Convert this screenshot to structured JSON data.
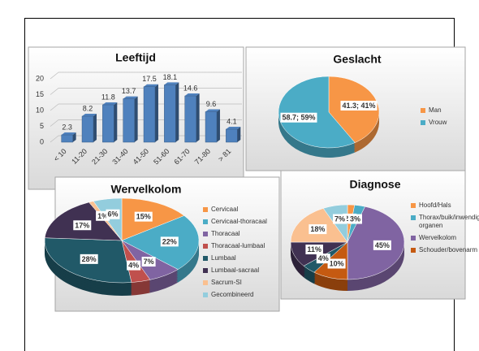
{
  "chart_data": [
    {
      "type": "bar",
      "title": "Leeftijd",
      "categories": [
        "< 10",
        "11-20",
        "21-30",
        "31-40",
        "41-50",
        "51-60",
        "61-70",
        "71-80",
        "> 81"
      ],
      "values": [
        2.3,
        8.2,
        11.8,
        13.7,
        17.5,
        18.1,
        14.6,
        9.6,
        4.1
      ],
      "color": "#4f81bd",
      "ylim": [
        0,
        20
      ],
      "yticks": [
        0,
        5,
        10,
        15,
        20
      ],
      "grid": true
    },
    {
      "type": "pie",
      "title": "Geslacht",
      "categories": [
        "Man",
        "Vrouw"
      ],
      "values": [
        41.3,
        58.7
      ],
      "value_labels": [
        "41.3; 41%",
        "58.7; 59%"
      ],
      "colors": [
        "#f79646",
        "#4bacc6"
      ],
      "legend": "right"
    },
    {
      "type": "pie",
      "title": "Wervelkolom",
      "categories": [
        "Cervicaal",
        "Cervicaal-thoracaal",
        "Thoracaal",
        "Thoracaal-lumbaal",
        "Lumbaal",
        "Lumbaal-sacraal",
        "Sacrum-SI",
        "Gecombineerd"
      ],
      "values": [
        15,
        22,
        7,
        4,
        28,
        17,
        1,
        6
      ],
      "value_labels": [
        "15%",
        "22%",
        "7%",
        "4%",
        "28%",
        "17%",
        "1%",
        "6%"
      ],
      "colors": [
        "#f79646",
        "#4bacc6",
        "#8064a2",
        "#c0504d",
        "#215968",
        "#403152",
        "#fac090",
        "#93cddd"
      ],
      "legend": "right"
    },
    {
      "type": "pie",
      "title": "Diagnose",
      "categories": [
        "Hoofd/Hals",
        "Thorax/buik/inwendige organen",
        "Wervelkolom",
        "Schouder/bovenarm",
        null,
        null,
        null,
        null
      ],
      "values": [
        2,
        3,
        45,
        10,
        4,
        11,
        18,
        7
      ],
      "value_labels": [
        "2%",
        "3%",
        "45%",
        "10%",
        "4%",
        "11%",
        "18%",
        "7%"
      ],
      "colors": [
        "#f79646",
        "#4bacc6",
        "#8064a2",
        "#c55a11",
        "#215968",
        "#403152",
        "#fac090",
        "#93cddd"
      ],
      "legend": "right"
    }
  ]
}
